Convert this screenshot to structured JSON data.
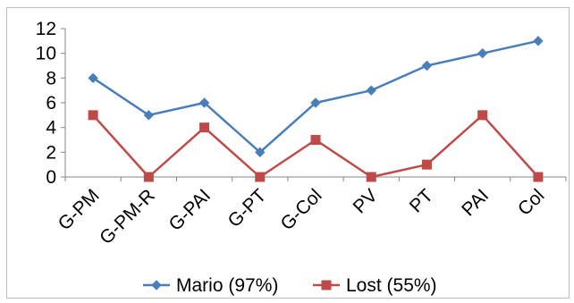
{
  "chart_data": {
    "type": "line",
    "categories": [
      "G-PM",
      "G-PM-R",
      "G-PAI",
      "G-PT",
      "G-Col",
      "PV",
      "PT",
      "PAI",
      "Col"
    ],
    "series": [
      {
        "name": "Mario (97%)",
        "values": [
          8,
          5,
          6,
          2,
          6,
          7,
          9,
          10,
          11
        ],
        "color": "#4a7ebb",
        "marker": "diamond"
      },
      {
        "name": "Lost (55%)",
        "values": [
          5,
          0,
          4,
          0,
          3,
          0,
          1,
          5,
          0
        ],
        "color": "#be4b48",
        "marker": "square"
      }
    ],
    "title": "",
    "xlabel": "",
    "ylabel": "",
    "ylim": [
      0,
      12
    ],
    "yticks": [
      "0",
      "2",
      "4",
      "6",
      "8",
      "10",
      "12"
    ],
    "grid": false,
    "legend_position": "bottom"
  }
}
